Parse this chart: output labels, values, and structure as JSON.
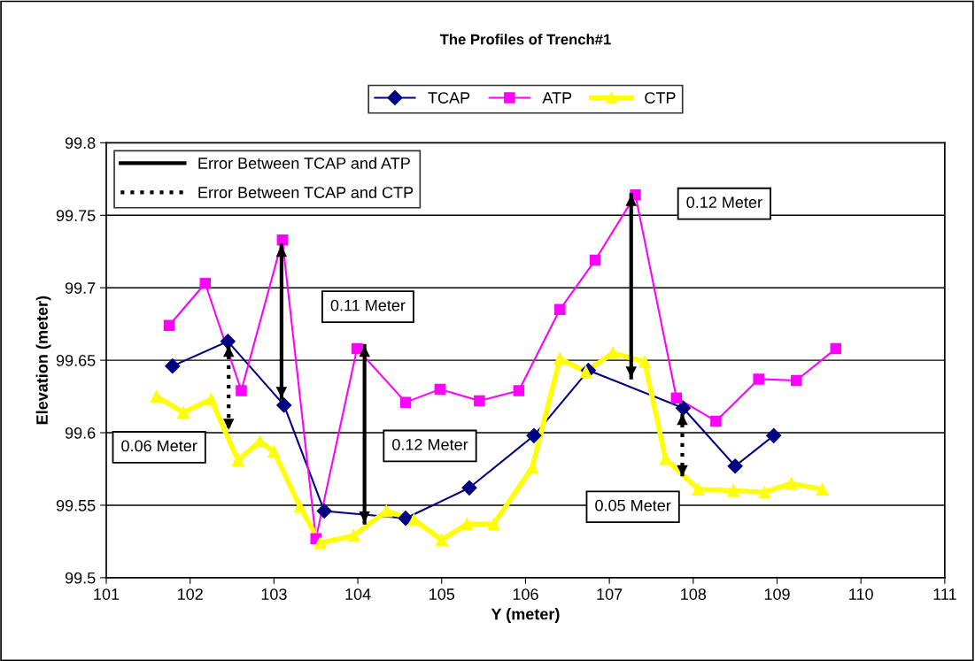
{
  "chart_data": {
    "type": "line",
    "title": "The Profiles of Trench#1",
    "xlabel": "Y (meter)",
    "ylabel": "Elevation (meter)",
    "xlim": [
      101,
      111
    ],
    "xticks": [
      101,
      102,
      103,
      104,
      105,
      106,
      107,
      108,
      109,
      110,
      111
    ],
    "ylim": [
      99.5,
      99.8
    ],
    "yticks": [
      99.5,
      99.55,
      99.6,
      99.65,
      99.7,
      99.75,
      99.8
    ],
    "grid": "y",
    "legend": "top",
    "series": [
      {
        "name": "TCAP",
        "color": "#000080",
        "marker": "diamond",
        "line_style": "solid",
        "x": [
          101.79,
          102.45,
          103.12,
          103.6,
          104.57,
          105.33,
          106.1,
          106.75,
          107.88,
          108.5,
          108.96
        ],
        "values": [
          99.646,
          99.663,
          99.619,
          99.546,
          99.541,
          99.562,
          99.598,
          99.643,
          99.617,
          99.577,
          99.598
        ]
      },
      {
        "name": "ATP",
        "color": "#ff00ff",
        "marker": "square",
        "line_style": "solid",
        "x": [
          101.75,
          102.18,
          102.61,
          103.1,
          103.5,
          103.99,
          104.57,
          104.98,
          105.45,
          105.92,
          106.41,
          106.83,
          107.31,
          107.8,
          108.27,
          108.78,
          109.23,
          109.7
        ],
        "values": [
          99.674,
          99.703,
          99.629,
          99.733,
          99.527,
          99.658,
          99.621,
          99.63,
          99.622,
          99.629,
          99.685,
          99.719,
          99.764,
          99.624,
          99.608,
          99.637,
          99.636,
          99.658
        ]
      },
      {
        "name": "CTP",
        "color": "#ffff00",
        "marker": "triangle",
        "line_style": "solid",
        "x": [
          101.6,
          101.92,
          102.25,
          102.57,
          102.83,
          103.0,
          103.31,
          103.55,
          103.95,
          104.34,
          104.67,
          105.0,
          105.3,
          105.62,
          106.08,
          106.41,
          106.72,
          107.04,
          107.42,
          107.67,
          108.06,
          108.48,
          108.85,
          109.17,
          109.54
        ],
        "values": [
          99.625,
          99.614,
          99.623,
          99.581,
          99.594,
          99.587,
          99.549,
          99.524,
          99.529,
          99.546,
          99.54,
          99.526,
          99.537,
          99.537,
          99.576,
          99.651,
          99.642,
          99.655,
          99.649,
          99.582,
          99.561,
          99.56,
          99.559,
          99.565,
          99.561
        ]
      },
      {
        "name": "Error Between TCAP and ATP",
        "color": "#000000",
        "marker": "none",
        "line_style": "solid",
        "x": [
          103.09,
          103.09,
          null,
          104.08,
          104.08,
          null,
          107.26,
          107.26
        ],
        "values": [
          99.729,
          99.624,
          null,
          99.66,
          99.538,
          null,
          99.764,
          99.638
        ]
      },
      {
        "name": "Error Between TCAP and CTP",
        "color": "#000000",
        "marker": "none",
        "line_style": "dotted",
        "x": [
          102.46,
          102.46,
          null,
          107.87,
          107.87
        ],
        "values": [
          99.66,
          99.602,
          null,
          99.613,
          99.57
        ]
      }
    ],
    "annotations": [
      "0.06 Meter",
      "0.11 Meter",
      "0.12 Meter",
      "0.12 Meter",
      "0.05 Meter"
    ]
  }
}
